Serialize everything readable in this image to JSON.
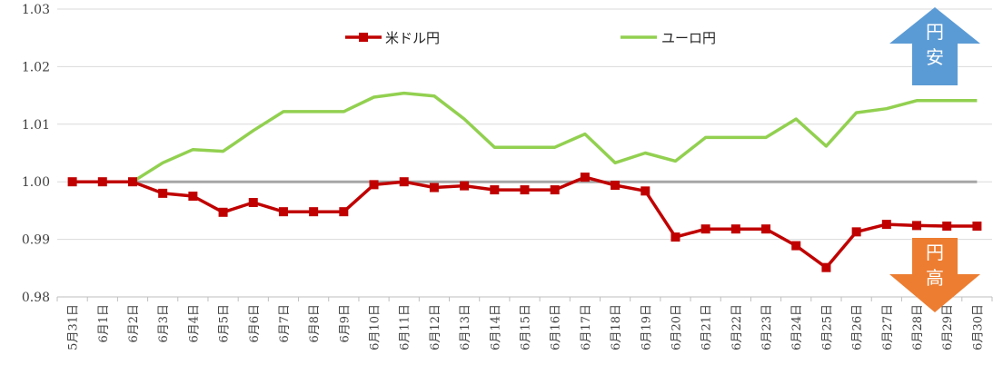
{
  "chart_data": {
    "type": "line",
    "categories": [
      "5月31日",
      "6月1日",
      "6月2日",
      "6月3日",
      "6月4日",
      "6月5日",
      "6月6日",
      "6月7日",
      "6月8日",
      "6月9日",
      "6月10日",
      "6月11日",
      "6月12日",
      "6月13日",
      "6月14日",
      "6月15日",
      "6月16日",
      "6月17日",
      "6月18日",
      "6月19日",
      "6月20日",
      "6月21日",
      "6月22日",
      "6月23日",
      "6月24日",
      "6月25日",
      "6月26日",
      "6月27日",
      "6月28日",
      "6月29日",
      "6月30日"
    ],
    "yticks": [
      "1.03",
      "1.02",
      "1.01",
      "1.00",
      "0.99",
      "0.98"
    ],
    "ylim": [
      0.98,
      1.03
    ],
    "baseline": 1.0,
    "series": [
      {
        "name": "米ドル円",
        "color": "#c00000",
        "marker": "square",
        "values": [
          1.0,
          1.0,
          1.0,
          0.998,
          0.9975,
          0.9947,
          0.9964,
          0.9948,
          0.9948,
          0.9948,
          0.9995,
          1.0,
          0.999,
          0.9993,
          0.9986,
          0.9986,
          0.9986,
          1.0008,
          0.9994,
          0.9984,
          0.9904,
          0.9918,
          0.9918,
          0.9918,
          0.9889,
          0.9851,
          0.9913,
          0.9926,
          0.9924,
          0.9923,
          0.9923
        ]
      },
      {
        "name": "ユーロ円",
        "color": "#92d050",
        "marker": "none",
        "values": [
          1.0,
          1.0,
          1.0,
          1.0033,
          1.0056,
          1.0053,
          1.0089,
          1.0122,
          1.0122,
          1.0122,
          1.0147,
          1.0154,
          1.0149,
          1.0109,
          1.006,
          1.006,
          1.006,
          1.0083,
          1.0033,
          1.005,
          1.0036,
          1.0077,
          1.0077,
          1.0077,
          1.0109,
          1.0062,
          1.012,
          1.0127,
          1.0141,
          1.0141,
          1.0141
        ]
      }
    ],
    "annotations": {
      "up_arrow": {
        "lines": [
          "円",
          "安"
        ],
        "color": "#5b9bd5"
      },
      "down_arrow": {
        "lines": [
          "円",
          "高"
        ],
        "color": "#ed7d31"
      }
    },
    "baseline_color": "#a6a6a6",
    "grid": true
  }
}
